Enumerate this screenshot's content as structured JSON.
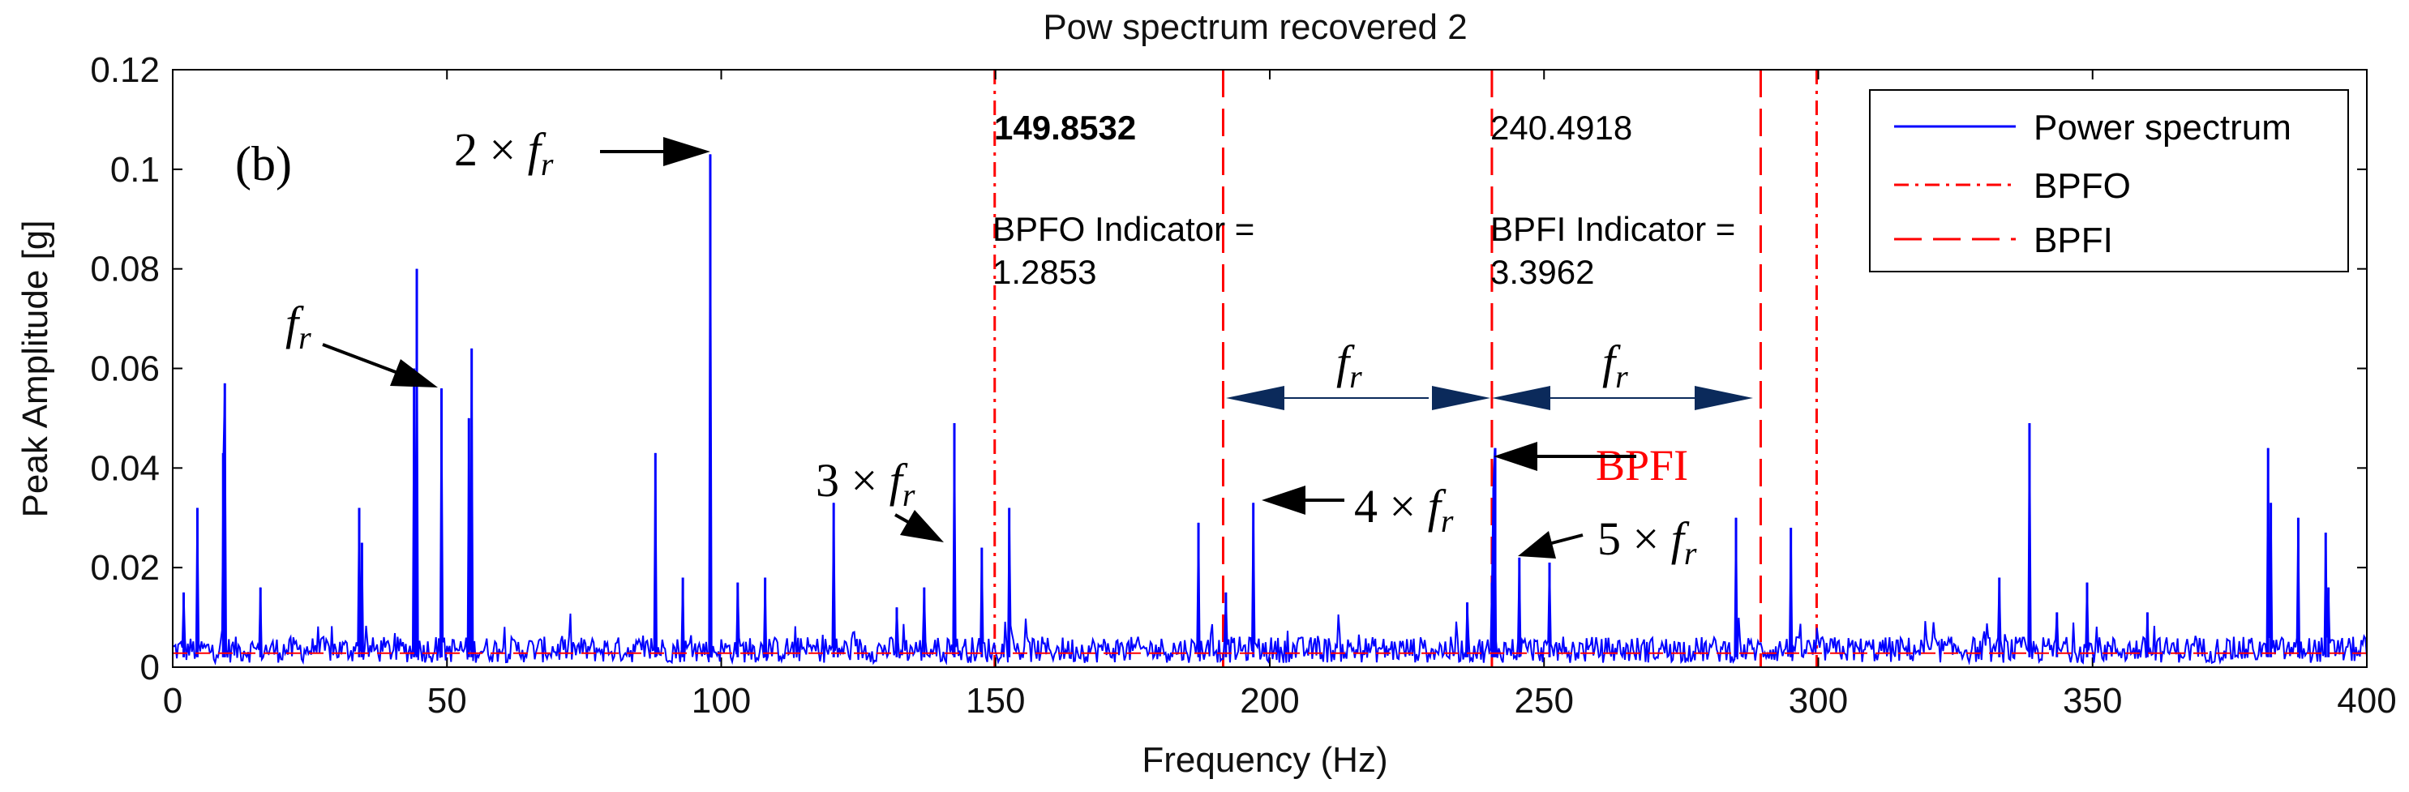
{
  "chart_data": {
    "type": "line",
    "title": "Pow spectrum recovered 2",
    "xlabel": "Frequency (Hz)",
    "ylabel": "Peak Amplitude [g]",
    "xlim": [
      0,
      400
    ],
    "ylim": [
      0,
      0.12
    ],
    "xticks": [
      0,
      50,
      100,
      150,
      200,
      250,
      300,
      350,
      400
    ],
    "yticks": [
      0,
      0.02,
      0.04,
      0.06,
      0.08,
      0.1,
      0.12
    ],
    "xtick_labels": [
      "0",
      "50",
      "100",
      "150",
      "200",
      "250",
      "300",
      "350",
      "400"
    ],
    "ytick_labels": [
      "0",
      "0.02",
      "0.04",
      "0.06",
      "0.08",
      "0.1",
      "0.12"
    ],
    "panel_label": "(b)",
    "grid": false,
    "legend": {
      "position": "top-right",
      "entries": [
        {
          "label": "Power spectrum",
          "style": "solid",
          "color": "#0000ff"
        },
        {
          "label": "BPFO",
          "style": "dash-dot",
          "color": "#ff0000"
        },
        {
          "label": "BPFI",
          "style": "long-dash",
          "color": "#ff0000"
        }
      ]
    },
    "series": [
      {
        "name": "Power spectrum",
        "color": "#0000ff",
        "noise_floor": 0.0035,
        "peaks": [
          {
            "x": 2,
            "y": 0.015
          },
          {
            "x": 4.5,
            "y": 0.032
          },
          {
            "x": 9.5,
            "y": 0.057
          },
          {
            "x": 9.2,
            "y": 0.043
          },
          {
            "x": 16,
            "y": 0.016
          },
          {
            "x": 34,
            "y": 0.032
          },
          {
            "x": 34.5,
            "y": 0.025
          },
          {
            "x": 44,
            "y": 0.06
          },
          {
            "x": 44.5,
            "y": 0.08
          },
          {
            "x": 49,
            "y": 0.056
          },
          {
            "x": 54.5,
            "y": 0.064
          },
          {
            "x": 54,
            "y": 0.05
          },
          {
            "x": 88,
            "y": 0.043
          },
          {
            "x": 93,
            "y": 0.018
          },
          {
            "x": 98,
            "y": 0.103
          },
          {
            "x": 103,
            "y": 0.017
          },
          {
            "x": 108,
            "y": 0.018
          },
          {
            "x": 120.5,
            "y": 0.033
          },
          {
            "x": 132,
            "y": 0.012
          },
          {
            "x": 137,
            "y": 0.016
          },
          {
            "x": 142.5,
            "y": 0.049
          },
          {
            "x": 147.5,
            "y": 0.024
          },
          {
            "x": 152.5,
            "y": 0.032
          },
          {
            "x": 187,
            "y": 0.029
          },
          {
            "x": 192,
            "y": 0.015
          },
          {
            "x": 197,
            "y": 0.033
          },
          {
            "x": 236,
            "y": 0.013
          },
          {
            "x": 240.5,
            "y": 0.017
          },
          {
            "x": 240.8,
            "y": 0.036
          },
          {
            "x": 241.1,
            "y": 0.044
          },
          {
            "x": 245.5,
            "y": 0.022
          },
          {
            "x": 251,
            "y": 0.021
          },
          {
            "x": 285,
            "y": 0.03
          },
          {
            "x": 295,
            "y": 0.028
          },
          {
            "x": 333,
            "y": 0.018
          },
          {
            "x": 338.5,
            "y": 0.049
          },
          {
            "x": 343.5,
            "y": 0.011
          },
          {
            "x": 349,
            "y": 0.017
          },
          {
            "x": 360,
            "y": 0.011
          },
          {
            "x": 382,
            "y": 0.044
          },
          {
            "x": 382.5,
            "y": 0.033
          },
          {
            "x": 387.5,
            "y": 0.03
          },
          {
            "x": 392.5,
            "y": 0.027
          },
          {
            "x": 393,
            "y": 0.016
          }
        ]
      },
      {
        "name": "BPFO",
        "color": "#ff0000",
        "style": "dash-dot",
        "level": 0.0028
      },
      {
        "name": "BPFI",
        "color": "#ff0000",
        "style": "long-dash",
        "level": 0.0028
      }
    ],
    "vertical_markers": [
      {
        "x": 149.8532,
        "style": "dash-dot",
        "series": "BPFO"
      },
      {
        "x": 191.5,
        "style": "long-dash",
        "series": "BPFI"
      },
      {
        "x": 240.4918,
        "style": "long-dash",
        "series": "BPFI"
      },
      {
        "x": 289.5,
        "style": "long-dash",
        "series": "BPFI"
      },
      {
        "x": 299.7,
        "style": "dash-dot",
        "series": "BPFO"
      }
    ],
    "annotations": {
      "bpfo_freq": "149.8532",
      "bpfo_indicator_label": "BPFO Indicator =",
      "bpfo_indicator_value": "1.2853",
      "bpfi_freq": "240.4918",
      "bpfi_indicator_label": "BPFI Indicator =",
      "bpfi_indicator_value": "3.3962",
      "fr_main": "f",
      "fr_sub": "r",
      "label_2fr": "2 × ",
      "label_3fr": "3 × ",
      "label_4fr": "4 × ",
      "label_5fr": "5 × ",
      "bpfi_red": "BPFI"
    }
  }
}
